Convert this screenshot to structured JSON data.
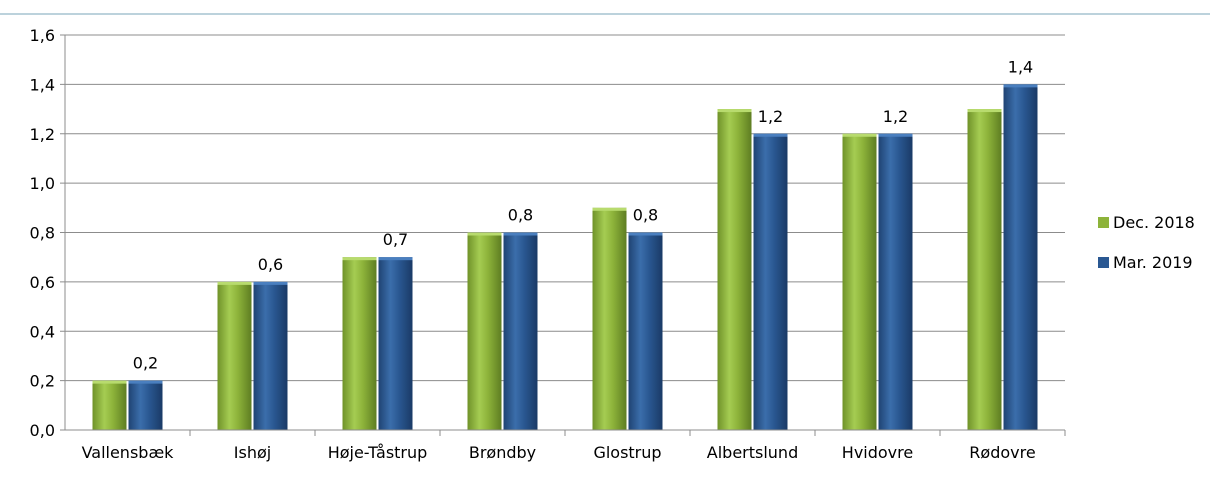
{
  "chart_data": {
    "type": "bar",
    "title": "",
    "xlabel": "",
    "ylabel": "",
    "ylim": [
      0,
      1.6
    ],
    "yticks": [
      "0,0",
      "0,2",
      "0,4",
      "0,6",
      "0,8",
      "1,0",
      "1,2",
      "1,4",
      "1,6"
    ],
    "grid": true,
    "legend_position": "right",
    "categories": [
      "Vallensbæk",
      "Ishøj",
      "Høje-Tåstrup",
      "Brøndby",
      "Glostrup",
      "Albertslund",
      "Hvidovre",
      "Rødovre"
    ],
    "series": [
      {
        "name": "Dec. 2018",
        "color": "#8db33a",
        "values": [
          0.2,
          0.6,
          0.7,
          0.8,
          0.9,
          1.3,
          1.2,
          1.3
        ]
      },
      {
        "name": "Mar. 2019",
        "color": "#2a5892",
        "values": [
          0.2,
          0.6,
          0.7,
          0.8,
          0.8,
          1.2,
          1.2,
          1.4
        ]
      }
    ],
    "data_labels": [
      "0,2",
      "0,6",
      "0,7",
      "0,8",
      "0,8",
      "1,2",
      "1,2",
      "1,4"
    ]
  }
}
